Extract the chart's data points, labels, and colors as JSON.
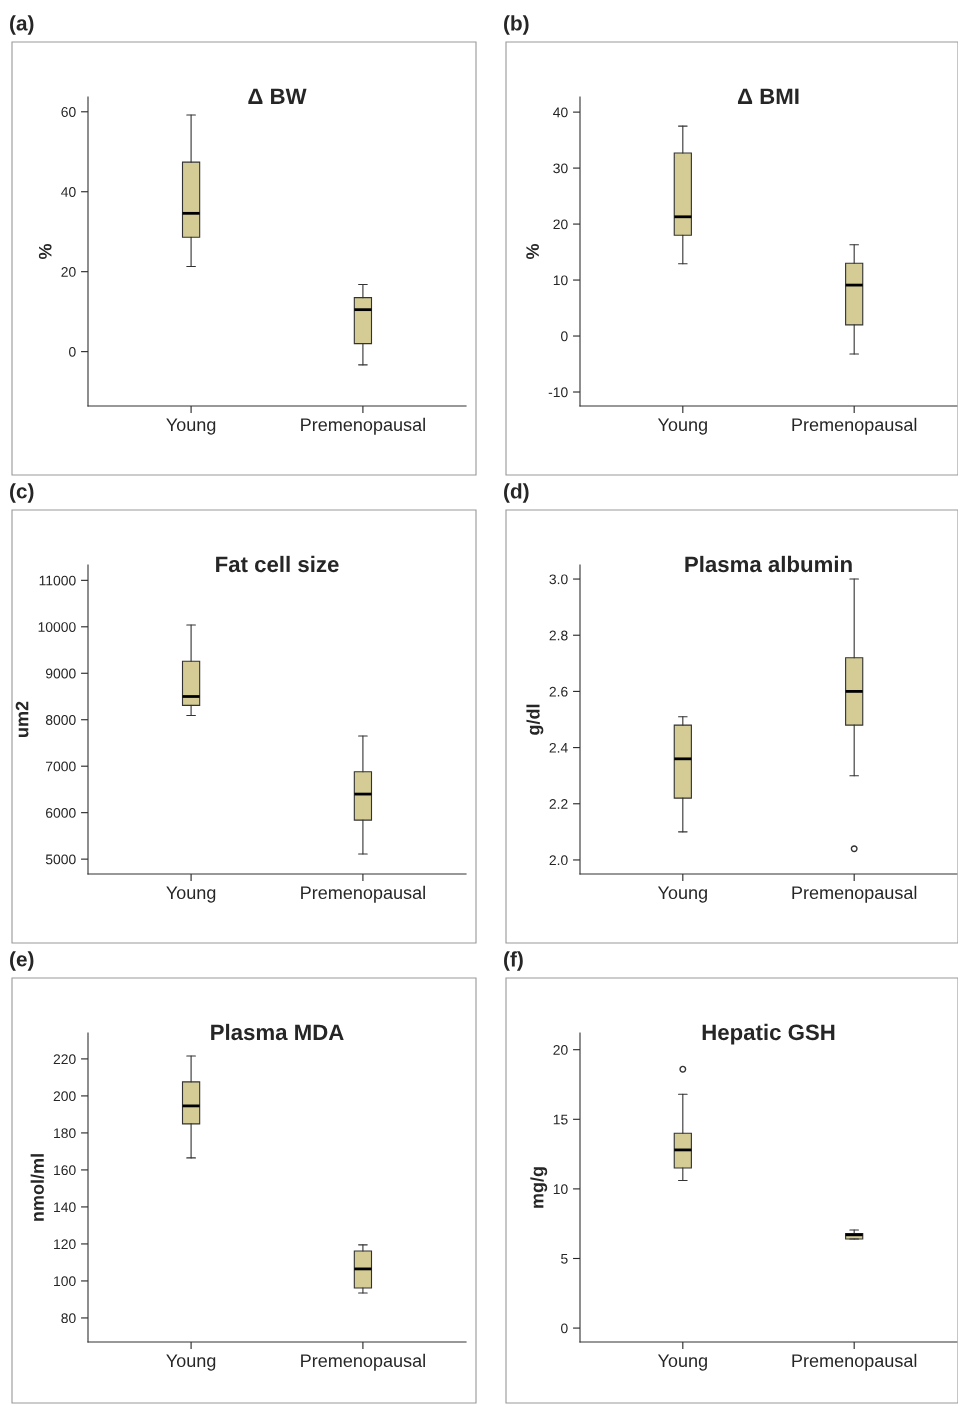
{
  "chart_data": [
    {
      "type": "box",
      "title": "Δ BW",
      "ylabel": "%",
      "annotations": [
        "(a)"
      ],
      "categories": [
        "Young",
        "Premenopausal"
      ],
      "ylim": [
        -13.6,
        63.7
      ],
      "yticks": [
        0,
        20,
        40,
        60
      ],
      "color": "#d4cc94",
      "boxes": [
        {
          "low": 21.3,
          "q1": 28.6,
          "median": 34.6,
          "q3": 47.4,
          "high": 59.2
        },
        {
          "low": -3.3,
          "q1": 2.0,
          "median": 10.5,
          "q3": 13.5,
          "high": 16.8
        }
      ]
    },
    {
      "type": "box",
      "title": "Δ BMI",
      "ylabel": "%",
      "annotations": [
        "(b)"
      ],
      "categories": [
        "Young",
        "Premenopausal"
      ],
      "ylim": [
        -12.5,
        42.7
      ],
      "yticks": [
        -10,
        0,
        10,
        20,
        30,
        40
      ],
      "color": "#d4cc94",
      "boxes": [
        {
          "low": 12.9,
          "q1": 18.0,
          "median": 21.3,
          "q3": 32.7,
          "high": 37.5
        },
        {
          "low": -3.2,
          "q1": 2.0,
          "median": 9.1,
          "q3": 13.0,
          "high": 16.3
        }
      ]
    },
    {
      "type": "box",
      "title": "Fat cell size",
      "ylabel": "um2",
      "annotations": [
        "(c)"
      ],
      "categories": [
        "Young",
        "Premenopausal"
      ],
      "ylim": [
        4680,
        11330
      ],
      "yticks": [
        5000,
        6000,
        7000,
        8000,
        9000,
        10000,
        11000
      ],
      "color": "#d4cc94",
      "boxes": [
        {
          "low": 8090,
          "q1": 8310,
          "median": 8500,
          "q3": 9260,
          "high": 10040
        },
        {
          "low": 5110,
          "q1": 5840,
          "median": 6400,
          "q3": 6880,
          "high": 7650
        }
      ]
    },
    {
      "type": "box",
      "title": "Plasma albumin",
      "ylabel": "g/dl",
      "annotations": [
        "(d)"
      ],
      "categories": [
        "Young",
        "Premenopausal"
      ],
      "ylim": [
        1.95,
        3.05
      ],
      "yticks": [
        {
          "value": 2.0,
          "label": "2.0"
        },
        {
          "value": 2.2,
          "label": "2.2"
        },
        {
          "value": 2.4,
          "label": "2.4"
        },
        {
          "value": 2.6,
          "label": "2.6"
        },
        {
          "value": 2.8,
          "label": "2.8"
        },
        {
          "value": 3.0,
          "label": "3.0"
        }
      ],
      "color": "#d4cc94",
      "boxes": [
        {
          "low": 2.1,
          "q1": 2.22,
          "median": 2.36,
          "q3": 2.48,
          "high": 2.51
        },
        {
          "low": 2.3,
          "q1": 2.48,
          "median": 2.6,
          "q3": 2.72,
          "high": 3.0,
          "outliers": [
            2.04
          ]
        }
      ]
    },
    {
      "type": "box",
      "title": "Plasma MDA",
      "ylabel": "nmol/ml",
      "annotations": [
        "(e)"
      ],
      "categories": [
        "Young",
        "Premenopausal"
      ],
      "ylim": [
        67,
        234
      ],
      "yticks": [
        80,
        100,
        120,
        140,
        160,
        180,
        200,
        220
      ],
      "color": "#d4cc94",
      "boxes": [
        {
          "low": 166.5,
          "q1": 184.9,
          "median": 194.6,
          "q3": 207.6,
          "high": 221.6
        },
        {
          "low": 93.5,
          "q1": 96.2,
          "median": 106.5,
          "q3": 116.2,
          "high": 119.5
        }
      ]
    },
    {
      "type": "box",
      "title": "Hepatic GSH",
      "ylabel": "mg/g",
      "annotations": [
        "(f)"
      ],
      "categories": [
        "Young",
        "Premenopausal"
      ],
      "ylim": [
        -1.0,
        21.2
      ],
      "yticks": [
        0,
        5,
        10,
        15,
        20
      ],
      "color": "#d4cc94",
      "boxes": [
        {
          "low": 10.6,
          "q1": 11.5,
          "median": 12.8,
          "q3": 14.0,
          "high": 16.8,
          "outliers": [
            18.6
          ]
        },
        {
          "low": 6.4,
          "q1": 6.4,
          "median": 6.7,
          "q3": 6.8,
          "high": 7.05
        }
      ]
    }
  ]
}
